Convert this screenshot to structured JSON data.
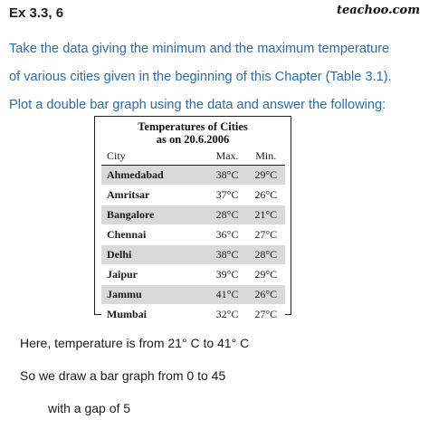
{
  "header": {
    "heading": "Ex 3.3, 6",
    "brand": "teachoo.com"
  },
  "question": {
    "lines": [
      "Take the data giving the minimum and the maximum temperature",
      "of various cities given in the beginning of this Chapter (Table 3.1).",
      "Plot a double bar graph using the data and answer the following:"
    ]
  },
  "table": {
    "caption_line1": "Temperatures of Cities",
    "caption_line2": "as on 20.6.2006",
    "columns": [
      "City",
      "Max.",
      "Min."
    ],
    "rows": [
      [
        "Ahmedabad",
        "38°C",
        "29°C"
      ],
      [
        "Amritsar",
        "37°C",
        "26°C"
      ],
      [
        "Bangalore",
        "28°C",
        "21°C"
      ],
      [
        "Chennai",
        "36°C",
        "27°C"
      ],
      [
        "Delhi",
        "38°C",
        "28°C"
      ],
      [
        "Jaipur",
        "39°C",
        "29°C"
      ],
      [
        "Jammu",
        "41°C",
        "26°C"
      ],
      [
        "Mumbai",
        "32°C",
        "27°C"
      ]
    ]
  },
  "notes": {
    "line1": "Here, temperature is from 21° C to 41° C",
    "line2": "So we draw a bar graph from 0 to 45",
    "line3": "with a gap of 5"
  },
  "colors": {
    "question_text": "#2b6cb0",
    "row_shade": "#d9d9d9"
  }
}
